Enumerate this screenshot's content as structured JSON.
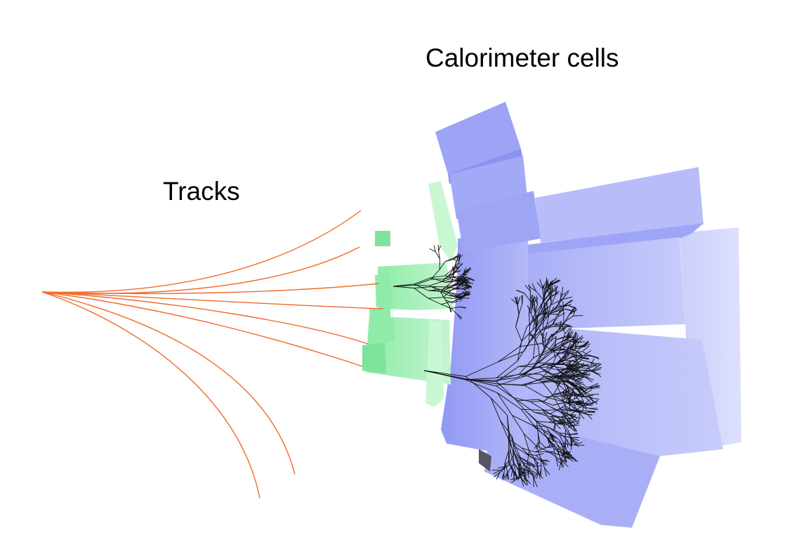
{
  "labels": {
    "calorimeter": "Calorimeter cells",
    "tracks": "Tracks"
  },
  "colors": {
    "background": "#ffffff",
    "track": "#f26a2a",
    "calo_blue": "#9da4f5",
    "calo_blue_light": "#c4c9fb",
    "calo_blue_pale": "#d8dcfd",
    "calo_green": "#9df0b4",
    "calo_green_light": "#c9f7d4",
    "shower": "#111111"
  },
  "icons": {
    "vertex": "track-origin-point"
  }
}
